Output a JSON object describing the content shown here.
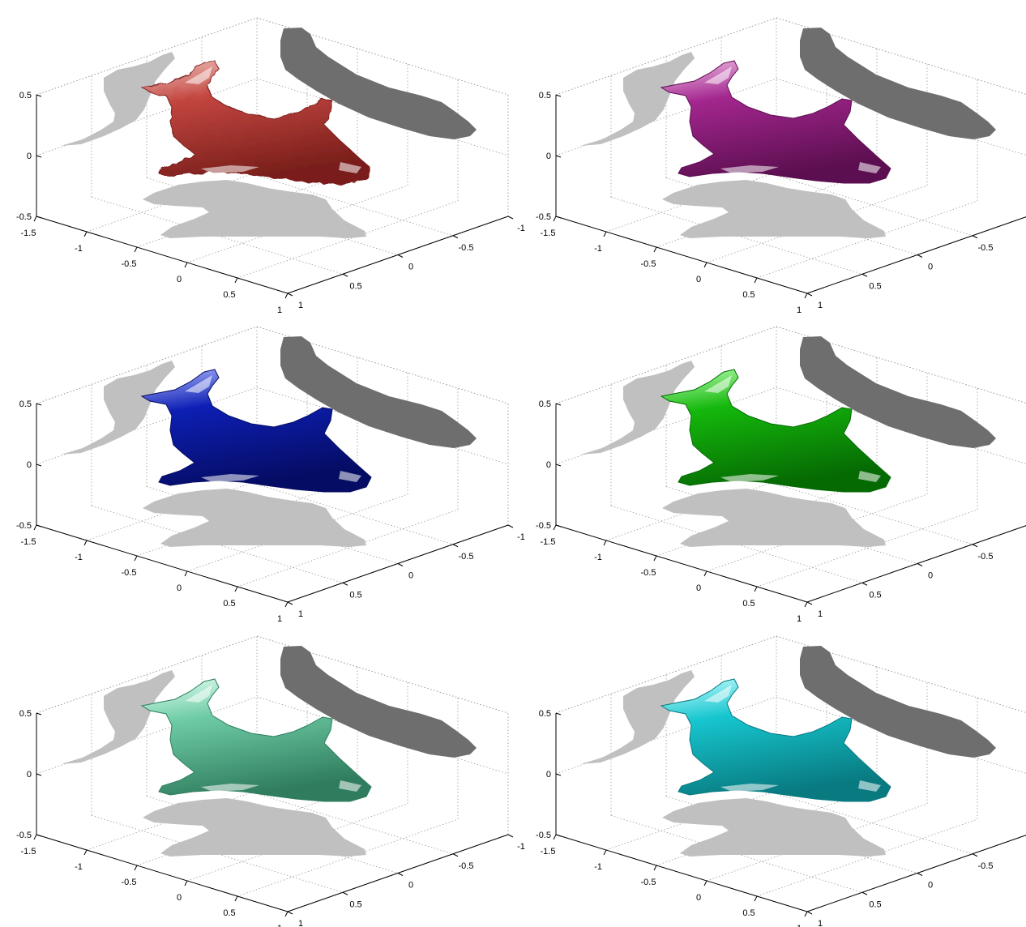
{
  "figure": {
    "panels": [
      {
        "name": "panel-red",
        "color": "#c2453f",
        "dark": "#7a1f1b",
        "light": "#f0c0bc",
        "style": "rough"
      },
      {
        "name": "panel-magenta",
        "color": "#a3268e",
        "dark": "#5c0f50",
        "light": "#f0bfe6",
        "style": "smooth"
      },
      {
        "name": "panel-blue",
        "color": "#0d1fb4",
        "dark": "#050c63",
        "light": "#aeb8ff",
        "style": "smooth"
      },
      {
        "name": "panel-green",
        "color": "#14b80c",
        "dark": "#066a03",
        "light": "#b8ffb0",
        "style": "smooth"
      },
      {
        "name": "panel-aquamarine",
        "color": "#6fcca6",
        "dark": "#2f7d5e",
        "light": "#e4fff3",
        "style": "smooth"
      },
      {
        "name": "panel-cyan",
        "color": "#17c6cf",
        "dark": "#087a80",
        "light": "#c8fdff",
        "style": "smooth"
      }
    ],
    "shadow_colors": {
      "side": "#c0c0c0",
      "back": "#6e6e6e",
      "floor": "#c0c0c0"
    },
    "z_ticks": [
      "0.5",
      "0",
      "-0.5"
    ],
    "x_ticks": [
      "-1.5",
      "-1",
      "-0.5",
      "0",
      "0.5",
      "1"
    ],
    "y_ticks": [
      "-1",
      "-0.5",
      "0",
      "0.5",
      "1"
    ]
  }
}
